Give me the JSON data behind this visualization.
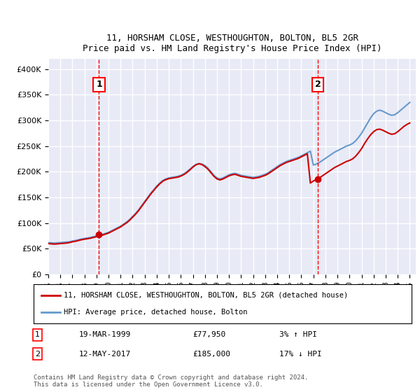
{
  "title": "11, HORSHAM CLOSE, WESTHOUGHTON, BOLTON, BL5 2GR",
  "subtitle": "Price paid vs. HM Land Registry's House Price Index (HPI)",
  "xlabel": "",
  "ylabel": "",
  "ylim": [
    0,
    420000
  ],
  "xlim_start": 1995.0,
  "xlim_end": 2025.5,
  "yticks": [
    0,
    50000,
    100000,
    150000,
    200000,
    250000,
    300000,
    350000,
    400000
  ],
  "ytick_labels": [
    "£0",
    "£50K",
    "£100K",
    "£150K",
    "£200K",
    "£250K",
    "£300K",
    "£350K",
    "£400K"
  ],
  "background_color": "#e8eaf6",
  "plot_bg": "#e8eaf6",
  "red_line_color": "#cc0000",
  "blue_line_color": "#6699cc",
  "grid_color": "#ffffff",
  "sale1_date": "19-MAR-1999",
  "sale1_price": "£77,950",
  "sale1_hpi": "3% ↑ HPI",
  "sale1_year": 1999.21,
  "sale1_value": 77950,
  "sale2_date": "12-MAY-2017",
  "sale2_price": "£185,000",
  "sale2_hpi": "17% ↓ HPI",
  "sale2_year": 2017.37,
  "sale2_value": 185000,
  "legend_line1": "11, HORSHAM CLOSE, WESTHOUGHTON, BOLTON, BL5 2GR (detached house)",
  "legend_line2": "HPI: Average price, detached house, Bolton",
  "footer": "Contains HM Land Registry data © Crown copyright and database right 2024.\nThis data is licensed under the Open Government Licence v3.0.",
  "hpi_years": [
    1995.0,
    1995.25,
    1995.5,
    1995.75,
    1996.0,
    1996.25,
    1996.5,
    1996.75,
    1997.0,
    1997.25,
    1997.5,
    1997.75,
    1998.0,
    1998.25,
    1998.5,
    1998.75,
    1999.0,
    1999.25,
    1999.5,
    1999.75,
    2000.0,
    2000.25,
    2000.5,
    2000.75,
    2001.0,
    2001.25,
    2001.5,
    2001.75,
    2002.0,
    2002.25,
    2002.5,
    2002.75,
    2003.0,
    2003.25,
    2003.5,
    2003.75,
    2004.0,
    2004.25,
    2004.5,
    2004.75,
    2005.0,
    2005.25,
    2005.5,
    2005.75,
    2006.0,
    2006.25,
    2006.5,
    2006.75,
    2007.0,
    2007.25,
    2007.5,
    2007.75,
    2008.0,
    2008.25,
    2008.5,
    2008.75,
    2009.0,
    2009.25,
    2009.5,
    2009.75,
    2010.0,
    2010.25,
    2010.5,
    2010.75,
    2011.0,
    2011.25,
    2011.5,
    2011.75,
    2012.0,
    2012.25,
    2012.5,
    2012.75,
    2013.0,
    2013.25,
    2013.5,
    2013.75,
    2014.0,
    2014.25,
    2014.5,
    2014.75,
    2015.0,
    2015.25,
    2015.5,
    2015.75,
    2016.0,
    2016.25,
    2016.5,
    2016.75,
    2017.0,
    2017.25,
    2017.5,
    2017.75,
    2018.0,
    2018.25,
    2018.5,
    2018.75,
    2019.0,
    2019.25,
    2019.5,
    2019.75,
    2020.0,
    2020.25,
    2020.5,
    2020.75,
    2021.0,
    2021.25,
    2021.5,
    2021.75,
    2022.0,
    2022.25,
    2022.5,
    2022.75,
    2023.0,
    2023.25,
    2023.5,
    2023.75,
    2024.0,
    2024.25,
    2024.5,
    2024.75,
    2025.0
  ],
  "hpi_values": [
    62000,
    61500,
    61000,
    61500,
    62000,
    62500,
    63000,
    63500,
    65000,
    66000,
    67500,
    69000,
    70000,
    71000,
    72000,
    73500,
    75000,
    76500,
    78000,
    80000,
    82000,
    85000,
    88000,
    91000,
    94000,
    98000,
    102000,
    107000,
    113000,
    119000,
    126000,
    134000,
    142000,
    150000,
    158000,
    165000,
    172000,
    178000,
    183000,
    186000,
    188000,
    189000,
    190000,
    191000,
    193000,
    196000,
    200000,
    205000,
    210000,
    214000,
    216000,
    215000,
    212000,
    207000,
    200000,
    193000,
    188000,
    186000,
    188000,
    191000,
    194000,
    196000,
    197000,
    195000,
    193000,
    192000,
    191000,
    190000,
    189000,
    190000,
    191000,
    193000,
    195000,
    198000,
    202000,
    206000,
    210000,
    214000,
    217000,
    220000,
    222000,
    224000,
    226000,
    228000,
    231000,
    234000,
    237000,
    240000,
    213000,
    215000,
    218000,
    222000,
    226000,
    230000,
    234000,
    238000,
    241000,
    244000,
    247000,
    250000,
    252000,
    255000,
    260000,
    267000,
    275000,
    285000,
    295000,
    305000,
    313000,
    318000,
    320000,
    318000,
    315000,
    312000,
    310000,
    311000,
    315000,
    320000,
    325000,
    330000,
    335000
  ],
  "red_years": [
    1995.0,
    1995.25,
    1995.5,
    1995.75,
    1996.0,
    1996.25,
    1996.5,
    1996.75,
    1997.0,
    1997.25,
    1997.5,
    1997.75,
    1998.0,
    1998.25,
    1998.5,
    1998.75,
    1999.0,
    1999.25,
    1999.5,
    1999.75,
    2000.0,
    2000.25,
    2000.5,
    2000.75,
    2001.0,
    2001.25,
    2001.5,
    2001.75,
    2002.0,
    2002.25,
    2002.5,
    2002.75,
    2003.0,
    2003.25,
    2003.5,
    2003.75,
    2004.0,
    2004.25,
    2004.5,
    2004.75,
    2005.0,
    2005.25,
    2005.5,
    2005.75,
    2006.0,
    2006.25,
    2006.5,
    2006.75,
    2007.0,
    2007.25,
    2007.5,
    2007.75,
    2008.0,
    2008.25,
    2008.5,
    2008.75,
    2009.0,
    2009.25,
    2009.5,
    2009.75,
    2010.0,
    2010.25,
    2010.5,
    2010.75,
    2011.0,
    2011.25,
    2011.5,
    2011.75,
    2012.0,
    2012.25,
    2012.5,
    2012.75,
    2013.0,
    2013.25,
    2013.5,
    2013.75,
    2014.0,
    2014.25,
    2014.5,
    2014.75,
    2015.0,
    2015.25,
    2015.5,
    2015.75,
    2016.0,
    2016.25,
    2016.5,
    2016.75,
    2017.0,
    2017.25,
    2017.5,
    2017.75,
    2018.0,
    2018.25,
    2018.5,
    2018.75,
    2019.0,
    2019.25,
    2019.5,
    2019.75,
    2020.0,
    2020.25,
    2020.5,
    2020.75,
    2021.0,
    2021.25,
    2021.5,
    2021.75,
    2022.0,
    2022.25,
    2022.5,
    2022.75,
    2023.0,
    2023.25,
    2023.5,
    2023.75,
    2024.0,
    2024.25,
    2024.5,
    2024.75,
    2025.0
  ],
  "red_values": [
    60000,
    59500,
    59000,
    59500,
    60000,
    60500,
    61000,
    62000,
    63500,
    64500,
    66000,
    67500,
    68500,
    69500,
    70500,
    72000,
    73500,
    75000,
    76500,
    78500,
    80500,
    83500,
    86500,
    89500,
    92500,
    96500,
    100500,
    105500,
    111500,
    117500,
    124500,
    132500,
    140500,
    148500,
    156500,
    163500,
    170500,
    176500,
    181500,
    184500,
    186500,
    187500,
    188500,
    189500,
    191500,
    194500,
    198500,
    203500,
    209000,
    213500,
    215500,
    214000,
    210000,
    205000,
    198000,
    191000,
    186000,
    184000,
    186000,
    189000,
    192000,
    194000,
    195000,
    193000,
    191000,
    190000,
    189000,
    188000,
    187000,
    188000,
    189000,
    191000,
    193000,
    196000,
    200000,
    204000,
    208000,
    212000,
    215000,
    218000,
    220000,
    222000,
    224000,
    226000,
    229000,
    232000,
    235000,
    178000,
    182000,
    185000,
    188000,
    192000,
    196000,
    200000,
    204000,
    208000,
    211000,
    214000,
    217000,
    220000,
    222000,
    225000,
    230000,
    237000,
    245000,
    255000,
    264000,
    272000,
    278000,
    282000,
    283000,
    281000,
    278000,
    275000,
    273000,
    274000,
    278000,
    283000,
    288000,
    292000,
    295000
  ]
}
